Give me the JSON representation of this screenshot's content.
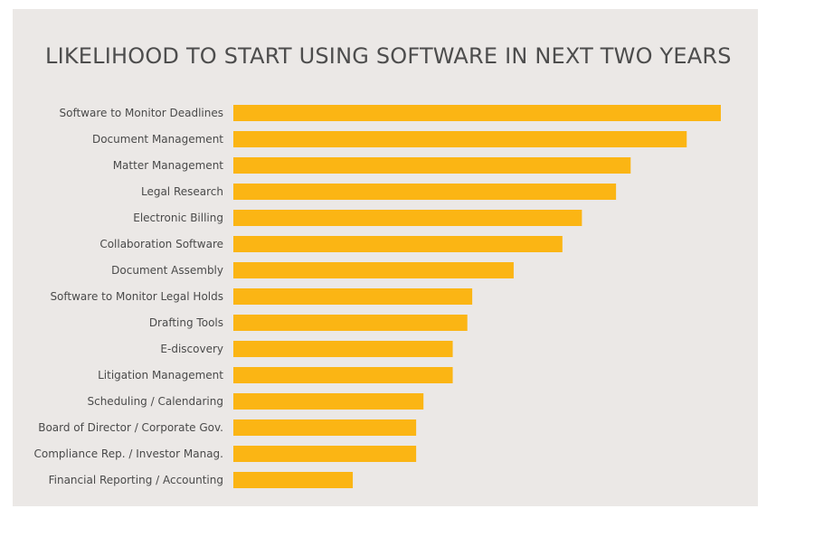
{
  "chart_data": {
    "type": "bar",
    "orientation": "horizontal",
    "title": "LIKELIHOOD TO START USING SOFTWARE IN NEXT TWO YEARS",
    "categories": [
      "Software to Monitor Deadlines",
      "Document Management",
      "Matter Management",
      "Legal Research",
      "Electronic Billing",
      "Collaboration Software",
      "Document Assembly",
      "Software to Monitor Legal Holds",
      "Drafting Tools",
      "E-discovery",
      "Litigation Management",
      "Scheduling / Calendaring",
      "Board of Director / Corporate Gov.",
      "Compliance Rep. / Investor Manag.",
      "Financial Reporting / Accounting"
    ],
    "values": [
      100,
      93,
      81.5,
      78.5,
      71.5,
      67.5,
      57.5,
      49,
      48,
      45,
      45,
      39,
      37.5,
      37.5,
      24.5
    ],
    "xlim": [
      0,
      100
    ],
    "axis_visible": false,
    "grid": false,
    "legend": "none",
    "bar_color": "#fbb514",
    "background_color": "#ebe8e6"
  }
}
